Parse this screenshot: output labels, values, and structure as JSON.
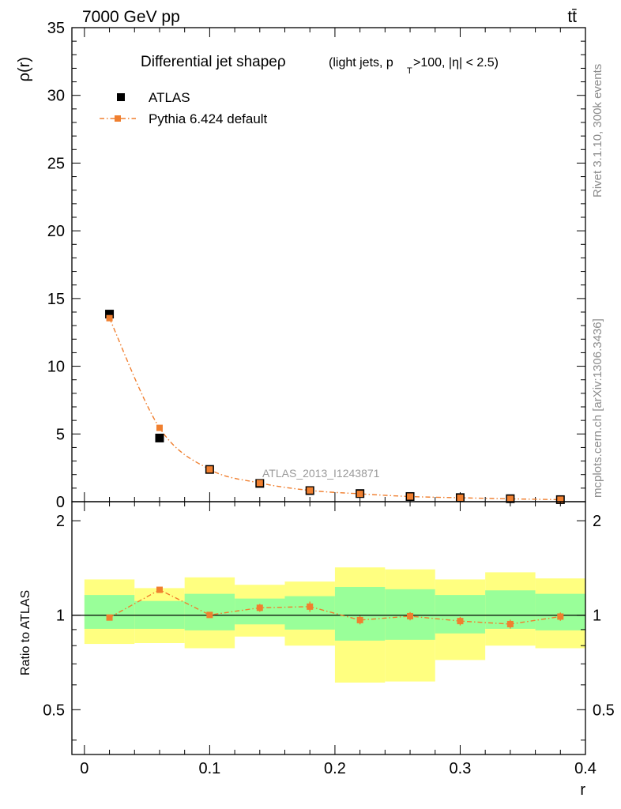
{
  "header": {
    "energy_label": "7000 GeV pp",
    "process_label": "tt̄"
  },
  "side_labels": {
    "rivet": "Rivet 3.1.10,  300k events",
    "mcplots": "mcplots.cern.ch [arXiv:1306.3436]"
  },
  "chart_data": [
    {
      "type": "scatter",
      "panel": "main",
      "title": "Differential jet shapeρ",
      "title_cut_prefix": "(light jets, p",
      "title_cut_sub": "T",
      "title_cut_suffix": ">100, |η| < 2.5)",
      "watermark": "ATLAS_2013_I1243871",
      "ylabel": "ρ(r)",
      "xlim": [
        -0.01,
        0.4
      ],
      "ylim": [
        0,
        35
      ],
      "y_ticks": [
        0,
        5,
        10,
        15,
        20,
        25,
        30,
        35
      ],
      "y_tick_labels": [
        "0",
        "5",
        "10",
        "15",
        "20",
        "25",
        "30",
        "35"
      ],
      "legend": {
        "position": "top-left"
      },
      "x": [
        0.02,
        0.06,
        0.1,
        0.14,
        0.18,
        0.22,
        0.26,
        0.3,
        0.34,
        0.38
      ],
      "series": [
        {
          "name": "ATLAS",
          "style": "marker",
          "color": "#000000",
          "values": [
            13.85,
            4.7,
            2.38,
            1.35,
            0.82,
            0.6,
            0.38,
            0.3,
            0.22,
            0.15
          ]
        },
        {
          "name": "Pythia 6.424 default",
          "style": "dashdot-line-with-markers",
          "color": "#f07f2f",
          "values": [
            13.55,
            5.45,
            2.38,
            1.38,
            0.83,
            0.58,
            0.38,
            0.29,
            0.21,
            0.15
          ]
        }
      ]
    },
    {
      "type": "scatter",
      "panel": "ratio",
      "ylabel": "Ratio to ATLAS",
      "xlabel": "r",
      "xlim": [
        -0.01,
        0.4
      ],
      "ylim": [
        0.36,
        2.3
      ],
      "log_y": true,
      "y_ticks": [
        0.5,
        1,
        2
      ],
      "y_tick_labels": [
        "0.5",
        "1",
        "2"
      ],
      "x_ticks": [
        0,
        0.1,
        0.2,
        0.3,
        0.4
      ],
      "x_tick_labels": [
        "0",
        "0.1",
        "0.2",
        "0.3",
        "0.4"
      ],
      "reference_line": 1,
      "bins": [
        [
          0.0,
          0.04
        ],
        [
          0.04,
          0.08
        ],
        [
          0.08,
          0.12
        ],
        [
          0.12,
          0.16
        ],
        [
          0.16,
          0.2
        ],
        [
          0.2,
          0.24
        ],
        [
          0.24,
          0.28
        ],
        [
          0.28,
          0.32
        ],
        [
          0.32,
          0.36
        ],
        [
          0.36,
          0.4
        ]
      ],
      "band_total": {
        "color": "#ffff80",
        "lower": [
          0.81,
          0.815,
          0.785,
          0.855,
          0.8,
          0.61,
          0.615,
          0.72,
          0.8,
          0.785
        ],
        "upper": [
          1.3,
          1.22,
          1.32,
          1.25,
          1.28,
          1.42,
          1.4,
          1.3,
          1.37,
          1.31
        ]
      },
      "band_stat": {
        "color": "#99ff99",
        "lower": [
          0.905,
          0.905,
          0.895,
          0.935,
          0.9,
          0.83,
          0.835,
          0.875,
          0.905,
          0.895
        ],
        "upper": [
          1.16,
          1.11,
          1.17,
          1.13,
          1.15,
          1.23,
          1.21,
          1.16,
          1.2,
          1.17
        ]
      },
      "series": [
        {
          "name": "Pythia 6.424 default",
          "color": "#f07f2f",
          "values": [
            0.983,
            1.205,
            1.002,
            1.056,
            1.065,
            0.965,
            0.993,
            0.958,
            0.937,
            0.99
          ],
          "errors": [
            0.01,
            0.02,
            0.02,
            0.03,
            0.04,
            0.03,
            0.03,
            0.03,
            0.03,
            0.03
          ]
        }
      ]
    }
  ]
}
